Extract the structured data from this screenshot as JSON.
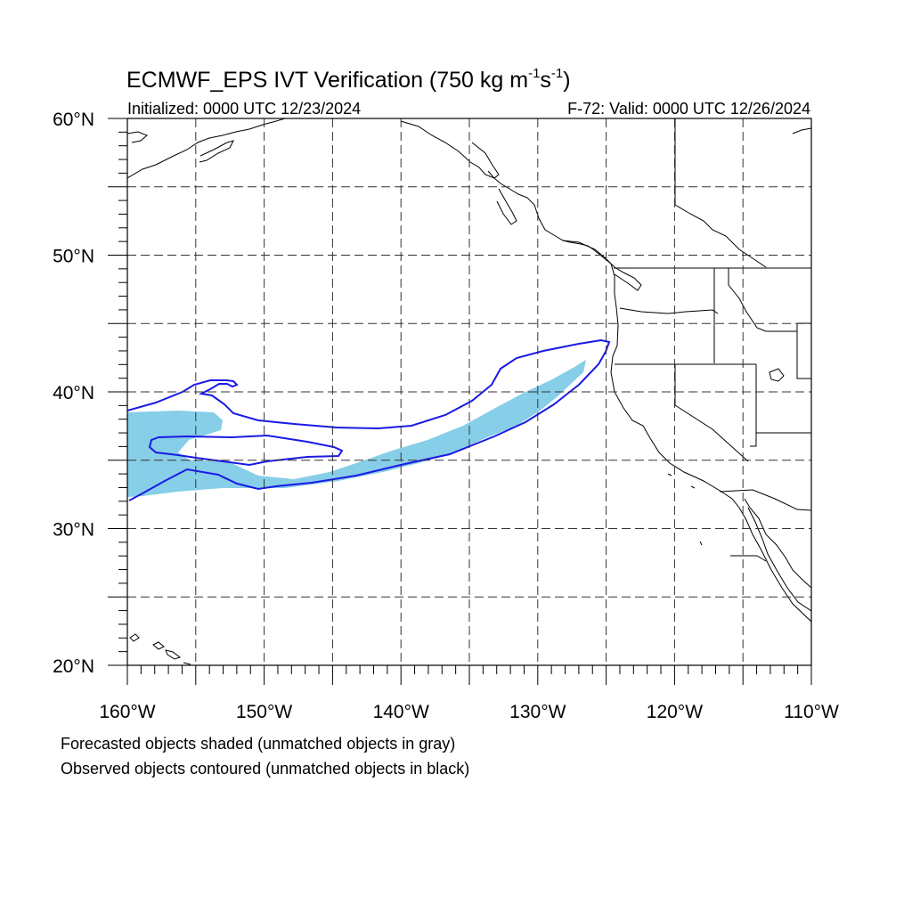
{
  "figure": {
    "title_main": "ECMWF_EPS IVT Verification (750 kg m",
    "title_exp1": "-1",
    "title_mid": "s",
    "title_exp2": "-1",
    "title_end": ")",
    "init_text": "Initialized: 0000 UTC 12/23/2024",
    "valid_text": "F-72: Valid: 0000 UTC 12/26/2024"
  },
  "map": {
    "lon_range": [
      -160,
      -110
    ],
    "lat_range": [
      20,
      60
    ],
    "lat_labels": [
      {
        "lat": 60,
        "label": "60°N"
      },
      {
        "lat": 50,
        "label": "50°N"
      },
      {
        "lat": 40,
        "label": "40°N"
      },
      {
        "lat": 30,
        "label": "30°N"
      },
      {
        "lat": 20,
        "label": "20°N"
      }
    ],
    "lon_labels": [
      {
        "lon": -160,
        "label": "160°W"
      },
      {
        "lon": -150,
        "label": "150°W"
      },
      {
        "lon": -140,
        "label": "140°W"
      },
      {
        "lon": -130,
        "label": "130°W"
      },
      {
        "lon": -120,
        "label": "120°W"
      },
      {
        "lon": -110,
        "label": "110°W"
      }
    ],
    "grid_lats": [
      25,
      30,
      35,
      40,
      45,
      50,
      55
    ],
    "grid_lons": [
      -155,
      -150,
      -145,
      -140,
      -135,
      -130,
      -125,
      -120,
      -115
    ],
    "colors": {
      "forecast_fill": "#87cee8",
      "observed_contour": "#1a1ae6",
      "grid": "#333333",
      "coastline": "#000000"
    }
  },
  "legend": {
    "line1": "Forecasted objects shaded (unmatched objects in gray)",
    "line2": "Observed objects contoured (unmatched objects in black)"
  }
}
